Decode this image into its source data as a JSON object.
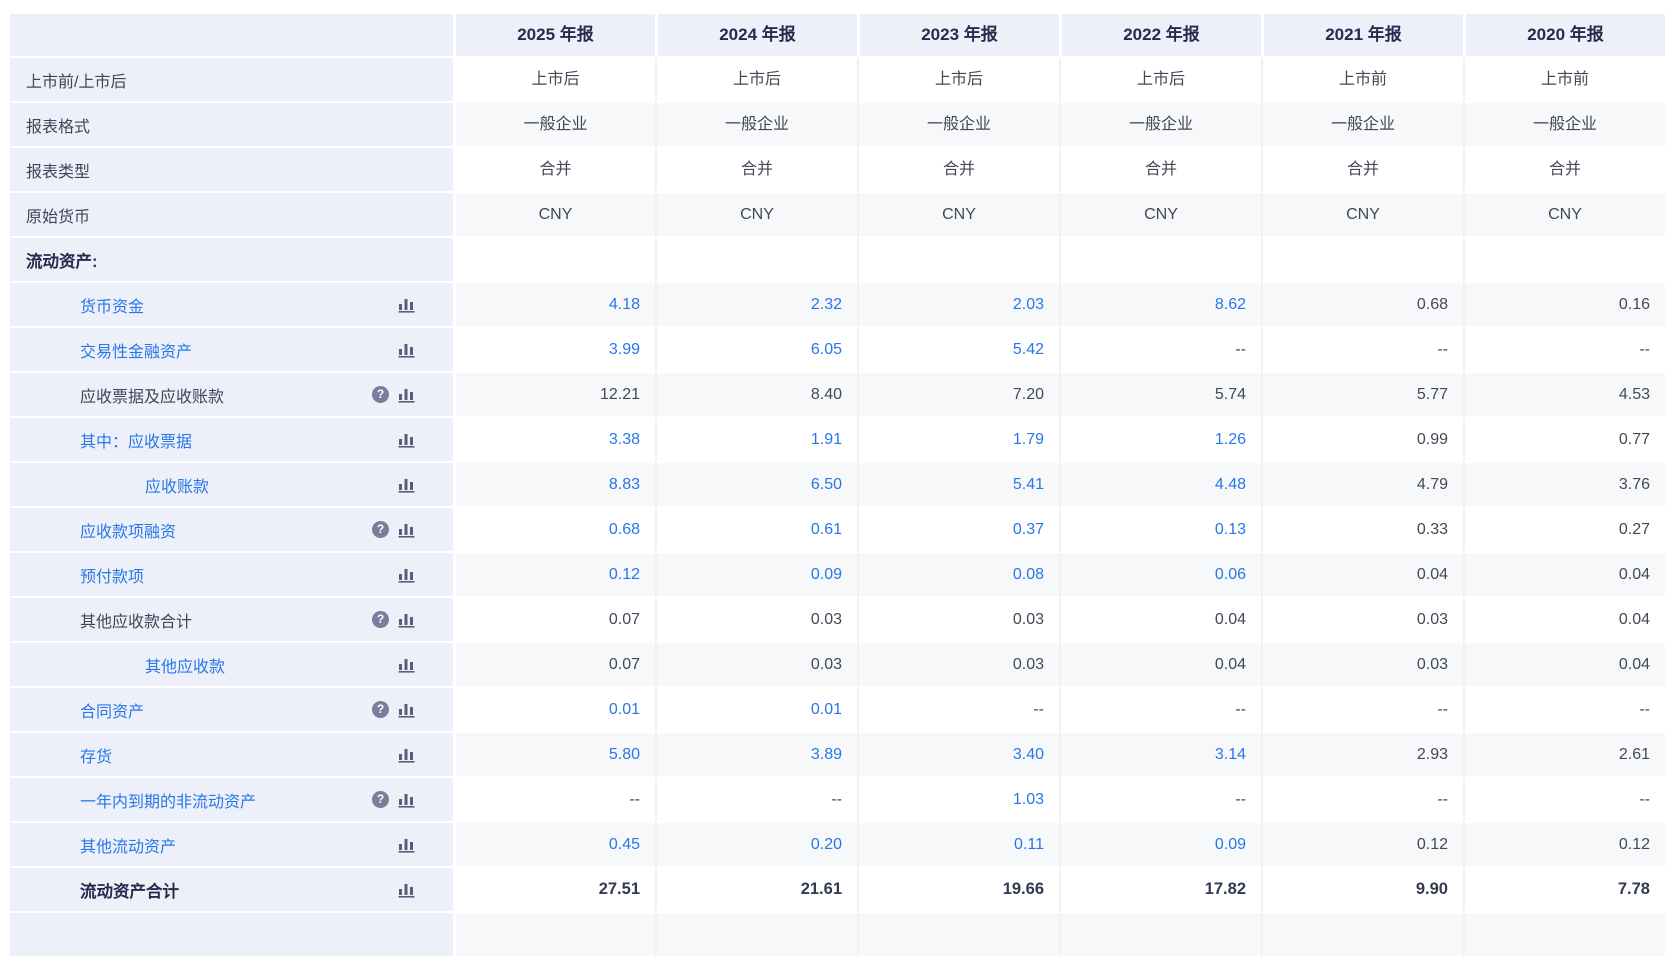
{
  "colors": {
    "accent_blue": "#2777e8",
    "header_navy": "#262b4e",
    "dark_text": "#424856",
    "label_panel_bg": "#eef0f9",
    "alt_row_bg": "#f7f8fa",
    "help_icon_bg": "#797e9b",
    "chart_icon_color": "#585e78"
  },
  "icons": {
    "help_glyph": "?",
    "chart_icon_name": "bar-chart-icon"
  },
  "table": {
    "columns": [
      {
        "label": "2025 年报"
      },
      {
        "label": "2024 年报"
      },
      {
        "label": "2023 年报"
      },
      {
        "label": "2022 年报"
      },
      {
        "label": "2021 年报"
      },
      {
        "label": "2020 年报"
      }
    ],
    "rows": [
      {
        "type": "meta",
        "label": "上市前/上市后",
        "values": [
          "上市后",
          "上市后",
          "上市后",
          "上市后",
          "上市前",
          "上市前"
        ]
      },
      {
        "type": "meta",
        "label": "报表格式",
        "values": [
          "一般企业",
          "一般企业",
          "一般企业",
          "一般企业",
          "一般企业",
          "一般企业"
        ]
      },
      {
        "type": "meta",
        "label": "报表类型",
        "values": [
          "合并",
          "合并",
          "合并",
          "合并",
          "合并",
          "合并"
        ]
      },
      {
        "type": "meta",
        "label": "原始货币",
        "values": [
          "CNY",
          "CNY",
          "CNY",
          "CNY",
          "CNY",
          "CNY"
        ]
      },
      {
        "type": "section",
        "label": "流动资产:"
      },
      {
        "type": "item",
        "label": "货币资金",
        "link": true,
        "help": false,
        "chart": true,
        "indent": 1,
        "values": [
          {
            "v": "4.18",
            "blue": true
          },
          {
            "v": "2.32",
            "blue": true
          },
          {
            "v": "2.03",
            "blue": true
          },
          {
            "v": "8.62",
            "blue": true
          },
          {
            "v": "0.68",
            "blue": false
          },
          {
            "v": "0.16",
            "blue": false
          }
        ]
      },
      {
        "type": "item",
        "label": "交易性金融资产",
        "link": true,
        "help": false,
        "chart": true,
        "indent": 1,
        "values": [
          {
            "v": "3.99",
            "blue": true
          },
          {
            "v": "6.05",
            "blue": true
          },
          {
            "v": "5.42",
            "blue": true
          },
          {
            "v": "--",
            "blue": false
          },
          {
            "v": "--",
            "blue": false
          },
          {
            "v": "--",
            "blue": false
          }
        ]
      },
      {
        "type": "item",
        "label": "应收票据及应收账款",
        "link": false,
        "help": true,
        "chart": true,
        "indent": 1,
        "values": [
          {
            "v": "12.21",
            "blue": false
          },
          {
            "v": "8.40",
            "blue": false
          },
          {
            "v": "7.20",
            "blue": false
          },
          {
            "v": "5.74",
            "blue": false
          },
          {
            "v": "5.77",
            "blue": false
          },
          {
            "v": "4.53",
            "blue": false
          }
        ]
      },
      {
        "type": "item",
        "label": "其中：应收票据",
        "link": true,
        "help": false,
        "chart": true,
        "indent": 1,
        "values": [
          {
            "v": "3.38",
            "blue": true
          },
          {
            "v": "1.91",
            "blue": true
          },
          {
            "v": "1.79",
            "blue": true
          },
          {
            "v": "1.26",
            "blue": true
          },
          {
            "v": "0.99",
            "blue": false
          },
          {
            "v": "0.77",
            "blue": false
          }
        ]
      },
      {
        "type": "item",
        "label": "应收账款",
        "link": true,
        "help": false,
        "chart": true,
        "indent": 2,
        "values": [
          {
            "v": "8.83",
            "blue": true
          },
          {
            "v": "6.50",
            "blue": true
          },
          {
            "v": "5.41",
            "blue": true
          },
          {
            "v": "4.48",
            "blue": true
          },
          {
            "v": "4.79",
            "blue": false
          },
          {
            "v": "3.76",
            "blue": false
          }
        ]
      },
      {
        "type": "item",
        "label": "应收款项融资",
        "link": true,
        "help": true,
        "chart": true,
        "indent": 1,
        "values": [
          {
            "v": "0.68",
            "blue": true
          },
          {
            "v": "0.61",
            "blue": true
          },
          {
            "v": "0.37",
            "blue": true
          },
          {
            "v": "0.13",
            "blue": true
          },
          {
            "v": "0.33",
            "blue": false
          },
          {
            "v": "0.27",
            "blue": false
          }
        ]
      },
      {
        "type": "item",
        "label": "预付款项",
        "link": true,
        "help": false,
        "chart": true,
        "indent": 1,
        "values": [
          {
            "v": "0.12",
            "blue": true
          },
          {
            "v": "0.09",
            "blue": true
          },
          {
            "v": "0.08",
            "blue": true
          },
          {
            "v": "0.06",
            "blue": true
          },
          {
            "v": "0.04",
            "blue": false
          },
          {
            "v": "0.04",
            "blue": false
          }
        ]
      },
      {
        "type": "item",
        "label": "其他应收款合计",
        "link": false,
        "help": true,
        "chart": true,
        "indent": 1,
        "values": [
          {
            "v": "0.07",
            "blue": false
          },
          {
            "v": "0.03",
            "blue": false
          },
          {
            "v": "0.03",
            "blue": false
          },
          {
            "v": "0.04",
            "blue": false
          },
          {
            "v": "0.03",
            "blue": false
          },
          {
            "v": "0.04",
            "blue": false
          }
        ]
      },
      {
        "type": "item",
        "label": "其他应收款",
        "link": true,
        "help": false,
        "chart": true,
        "indent": 2,
        "values": [
          {
            "v": "0.07",
            "blue": false
          },
          {
            "v": "0.03",
            "blue": false
          },
          {
            "v": "0.03",
            "blue": false
          },
          {
            "v": "0.04",
            "blue": false
          },
          {
            "v": "0.03",
            "blue": false
          },
          {
            "v": "0.04",
            "blue": false
          }
        ]
      },
      {
        "type": "item",
        "label": "合同资产",
        "link": true,
        "help": true,
        "chart": true,
        "indent": 1,
        "values": [
          {
            "v": "0.01",
            "blue": true
          },
          {
            "v": "0.01",
            "blue": true
          },
          {
            "v": "--",
            "blue": false
          },
          {
            "v": "--",
            "blue": false
          },
          {
            "v": "--",
            "blue": false
          },
          {
            "v": "--",
            "blue": false
          }
        ]
      },
      {
        "type": "item",
        "label": "存货",
        "link": true,
        "help": false,
        "chart": true,
        "indent": 1,
        "values": [
          {
            "v": "5.80",
            "blue": true
          },
          {
            "v": "3.89",
            "blue": true
          },
          {
            "v": "3.40",
            "blue": true
          },
          {
            "v": "3.14",
            "blue": true
          },
          {
            "v": "2.93",
            "blue": false
          },
          {
            "v": "2.61",
            "blue": false
          }
        ]
      },
      {
        "type": "item",
        "label": "一年内到期的非流动资产",
        "link": true,
        "help": true,
        "chart": true,
        "indent": 1,
        "values": [
          {
            "v": "--",
            "blue": false
          },
          {
            "v": "--",
            "blue": false
          },
          {
            "v": "1.03",
            "blue": true
          },
          {
            "v": "--",
            "blue": false
          },
          {
            "v": "--",
            "blue": false
          },
          {
            "v": "--",
            "blue": false
          }
        ]
      },
      {
        "type": "item",
        "label": "其他流动资产",
        "link": true,
        "help": false,
        "chart": true,
        "indent": 1,
        "values": [
          {
            "v": "0.45",
            "blue": true
          },
          {
            "v": "0.20",
            "blue": true
          },
          {
            "v": "0.11",
            "blue": true
          },
          {
            "v": "0.09",
            "blue": true
          },
          {
            "v": "0.12",
            "blue": false
          },
          {
            "v": "0.12",
            "blue": false
          }
        ]
      },
      {
        "type": "item",
        "label": "流动资产合计",
        "link": false,
        "bold": true,
        "help": false,
        "chart": true,
        "indent": 1,
        "values": [
          {
            "v": "27.51",
            "blue": false
          },
          {
            "v": "21.61",
            "blue": false
          },
          {
            "v": "19.66",
            "blue": false
          },
          {
            "v": "17.82",
            "blue": false
          },
          {
            "v": "9.90",
            "blue": false
          },
          {
            "v": "7.78",
            "blue": false
          }
        ]
      }
    ],
    "clipped_next_row": true
  }
}
